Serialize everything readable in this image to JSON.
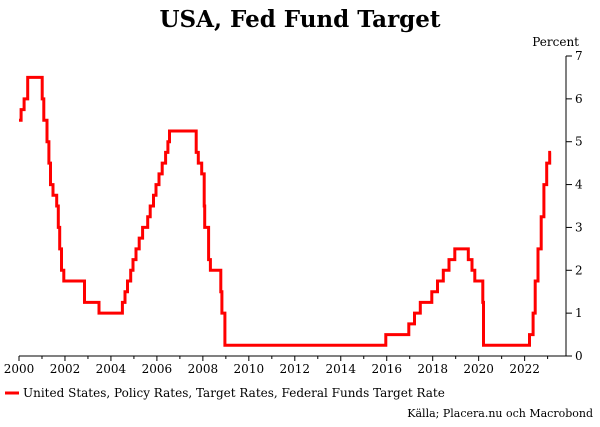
{
  "chart_data": {
    "type": "line",
    "title": "USA, Fed Fund Target",
    "ylabel": "Percent",
    "xlabel": "",
    "xlim": [
      2000.0,
      2023.8
    ],
    "ylim": [
      0,
      7
    ],
    "x_ticks": [
      2000,
      2002,
      2004,
      2006,
      2008,
      2010,
      2012,
      2014,
      2016,
      2018,
      2020,
      2022
    ],
    "x_tick_labels": [
      "2000",
      "2002",
      "2004",
      "2006",
      "2008",
      "2010",
      "2012",
      "2014",
      "2016",
      "2018",
      "2020",
      "2022"
    ],
    "y_ticks": [
      0,
      1,
      2,
      3,
      4,
      5,
      6,
      7
    ],
    "y_tick_labels": [
      "0",
      "1",
      "2",
      "3",
      "4",
      "5",
      "6",
      "7"
    ],
    "grid": false,
    "y_axis_position": "right",
    "legend_position": "bottom-left",
    "series": [
      {
        "name": "United States, Policy Rates, Target Rates, Federal Funds Target Rate",
        "color": "#ff0000",
        "step": true,
        "points": [
          [
            2000.0,
            5.5
          ],
          [
            2000.09,
            5.75
          ],
          [
            2000.22,
            6.0
          ],
          [
            2000.38,
            6.5
          ],
          [
            2001.01,
            6.0
          ],
          [
            2001.08,
            5.5
          ],
          [
            2001.22,
            5.0
          ],
          [
            2001.3,
            4.5
          ],
          [
            2001.37,
            4.0
          ],
          [
            2001.48,
            3.75
          ],
          [
            2001.64,
            3.5
          ],
          [
            2001.71,
            3.0
          ],
          [
            2001.77,
            2.5
          ],
          [
            2001.85,
            2.0
          ],
          [
            2001.95,
            1.75
          ],
          [
            2002.85,
            1.25
          ],
          [
            2003.48,
            1.0
          ],
          [
            2004.5,
            1.25
          ],
          [
            2004.61,
            1.5
          ],
          [
            2004.72,
            1.75
          ],
          [
            2004.86,
            2.0
          ],
          [
            2004.96,
            2.25
          ],
          [
            2005.09,
            2.5
          ],
          [
            2005.23,
            2.75
          ],
          [
            2005.38,
            3.0
          ],
          [
            2005.6,
            3.25
          ],
          [
            2005.71,
            3.5
          ],
          [
            2005.85,
            3.75
          ],
          [
            2005.96,
            4.0
          ],
          [
            2006.09,
            4.25
          ],
          [
            2006.23,
            4.5
          ],
          [
            2006.38,
            4.75
          ],
          [
            2006.48,
            5.0
          ],
          [
            2006.55,
            5.25
          ],
          [
            2007.71,
            4.75
          ],
          [
            2007.8,
            4.5
          ],
          [
            2007.95,
            4.25
          ],
          [
            2008.06,
            3.5
          ],
          [
            2008.08,
            3.0
          ],
          [
            2008.25,
            2.25
          ],
          [
            2008.33,
            2.0
          ],
          [
            2008.78,
            1.5
          ],
          [
            2008.83,
            1.0
          ],
          [
            2008.96,
            0.25
          ],
          [
            2015.96,
            0.5
          ],
          [
            2016.96,
            0.75
          ],
          [
            2017.21,
            1.0
          ],
          [
            2017.46,
            1.25
          ],
          [
            2017.96,
            1.5
          ],
          [
            2018.21,
            1.75
          ],
          [
            2018.46,
            2.0
          ],
          [
            2018.71,
            2.25
          ],
          [
            2018.96,
            2.5
          ],
          [
            2019.55,
            2.25
          ],
          [
            2019.71,
            2.0
          ],
          [
            2019.83,
            1.75
          ],
          [
            2020.18,
            1.25
          ],
          [
            2020.21,
            0.25
          ],
          [
            2022.21,
            0.5
          ],
          [
            2022.37,
            1.0
          ],
          [
            2022.46,
            1.75
          ],
          [
            2022.58,
            2.5
          ],
          [
            2022.72,
            3.25
          ],
          [
            2022.84,
            4.0
          ],
          [
            2022.96,
            4.5
          ],
          [
            2023.09,
            4.75
          ],
          [
            2023.15,
            4.75
          ]
        ]
      }
    ],
    "legend": [
      "United States, Policy Rates, Target Rates, Federal Funds Target Rate"
    ],
    "source": "Källa; Placera.nu och Macrobond"
  }
}
